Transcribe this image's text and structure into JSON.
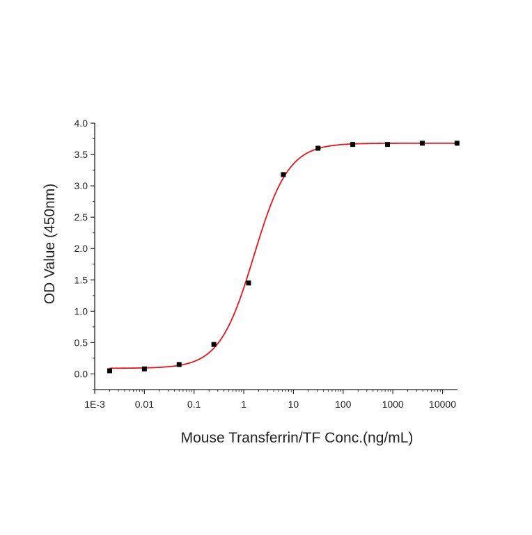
{
  "chart_data": {
    "type": "scatter",
    "title": "",
    "xlabel": "Mouse Transferrin/TF Conc.(ng/mL)",
    "ylabel": "OD Value (450nm)",
    "xscale": "log",
    "xlim": [
      0.001,
      20000
    ],
    "ylim": [
      -0.25,
      4.0
    ],
    "x_ticks": [
      0.001,
      0.01,
      0.1,
      1,
      10,
      100,
      1000,
      10000
    ],
    "x_tick_labels": [
      "1E-3",
      "0.01",
      "0.1",
      "1",
      "10",
      "100",
      "1000",
      "10000"
    ],
    "y_ticks": [
      0,
      0.5,
      1,
      1.5,
      2,
      2.5,
      3,
      3.5,
      4
    ],
    "y_tick_labels": [
      "0.0",
      "0.5",
      "1.0",
      "1.5",
      "2.0",
      "2.5",
      "3.0",
      "3.5",
      "4.0"
    ],
    "grid": false,
    "legend": "none",
    "series": [
      {
        "marker": "square",
        "color": "#000000",
        "x": [
          0.002,
          0.01,
          0.05,
          0.25,
          1.25,
          6.25,
          31.25,
          156.25,
          781.25,
          3906.25,
          19531.25
        ],
        "y": [
          0.05,
          0.08,
          0.15,
          0.47,
          1.45,
          3.18,
          3.6,
          3.66,
          3.66,
          3.68,
          3.68
        ]
      }
    ],
    "fit_curve": {
      "model": "4PL",
      "color": "#e8141b",
      "bottom": 0.09,
      "top": 3.68,
      "ec50": 1.6,
      "hill": 1.25
    }
  }
}
